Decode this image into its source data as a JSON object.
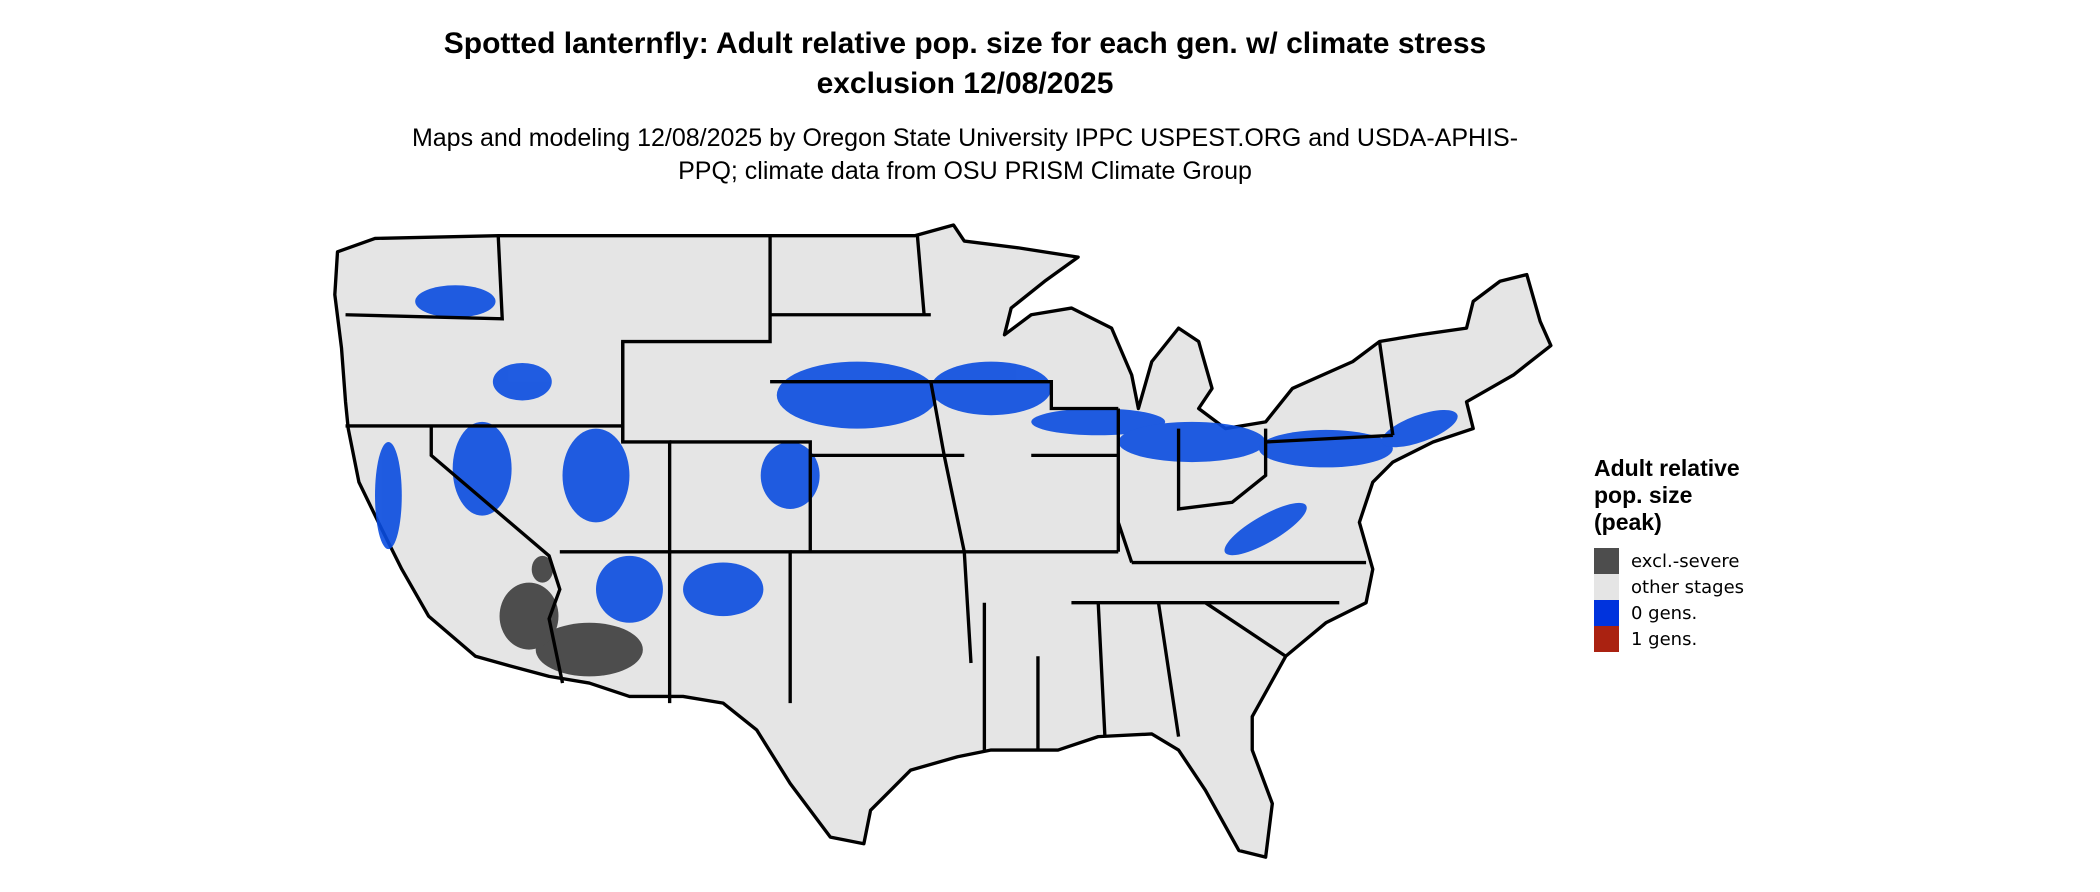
{
  "title": "Spotted lanternfly: Adult relative pop. size for each gen. w/ climate stress exclusion 12/08/2025",
  "subtitle": "Maps and modeling 12/08/2025 by Oregon State University IPPC USPEST.ORG and USDA-APHIS-PPQ; climate data from OSU PRISM Climate Group",
  "map": {
    "region": "Contiguous United States",
    "boundaries": "state borders"
  },
  "legend": {
    "title": "Adult relative pop. size (peak)",
    "items": [
      {
        "label": "excl.-severe",
        "color": "#4d4d4d"
      },
      {
        "label": "other stages",
        "color": "#e5e5e5"
      },
      {
        "label": "0 gens.",
        "color": "#0033dd"
      },
      {
        "label": "1 gens.",
        "color": "#aa2211"
      }
    ]
  }
}
